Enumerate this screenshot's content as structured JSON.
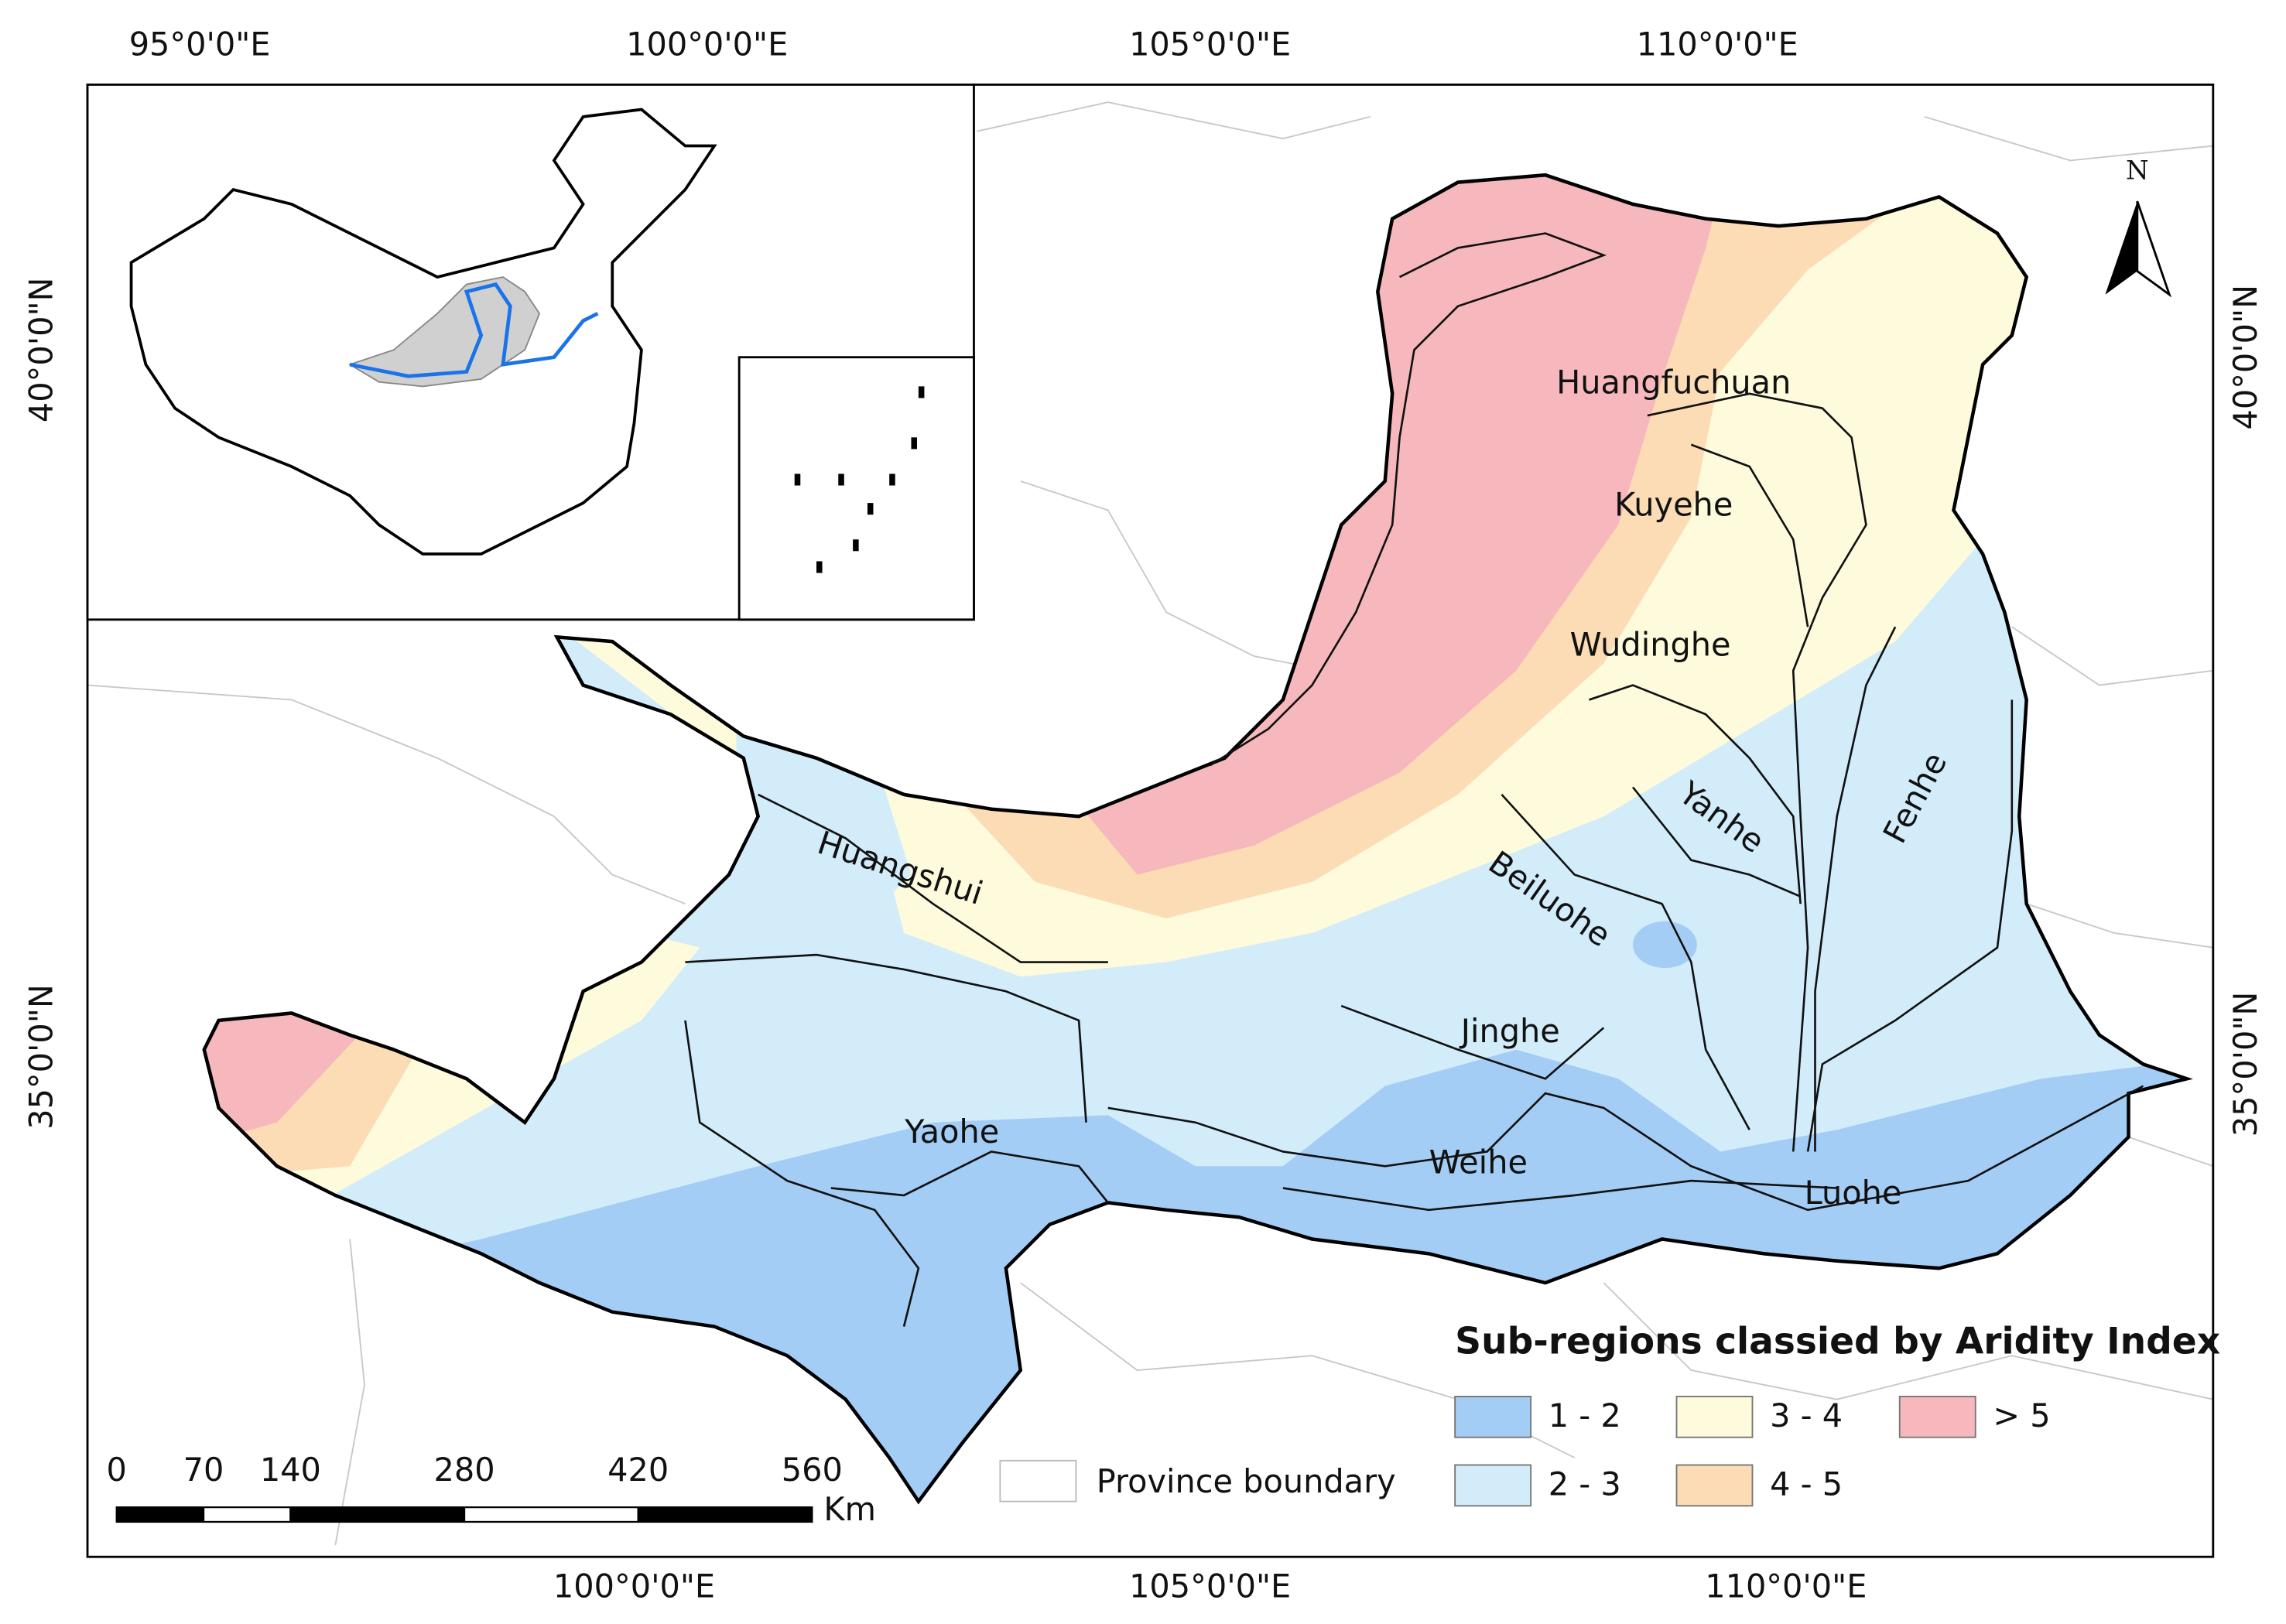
{
  "map": {
    "top_longitude_labels": [
      "95°0'0\"E",
      "100°0'0\"E",
      "105°0'0\"E",
      "110°0'0\"E"
    ],
    "bottom_longitude_labels": [
      "100°0'0\"E",
      "105°0'0\"E",
      "110°0'0\"E"
    ],
    "left_latitude_labels": [
      "40°0'0\"N",
      "35°0'0\"N"
    ],
    "right_latitude_labels": [
      "40°0'0\"N",
      "35°0'0\"N"
    ],
    "north_label": "N",
    "rivers": [
      "Huangfuchuan",
      "Kuyehe",
      "Wudinghe",
      "Yanhe",
      "Fenhe",
      "Beiluohe",
      "Huangshui",
      "Jinghe",
      "Yaohe",
      "Weihe",
      "Luohe"
    ],
    "legend": {
      "title": "Sub-regions classied by Aridity Index",
      "items": [
        {
          "label": "1 - 2",
          "color": "#a3cdf5"
        },
        {
          "label": "2 - 3",
          "color": "#d3ecfa"
        },
        {
          "label": "3 - 4",
          "color": "#fdfbdc"
        },
        {
          "label": "4 - 5",
          "color": "#fbdcb4"
        },
        {
          "label": "> 5",
          "color": "#f6b8bc"
        }
      ],
      "boundary_label": "Province boundary"
    },
    "scale_bar": {
      "ticks": [
        0,
        70,
        140,
        280,
        420,
        560
      ],
      "unit": "Km"
    }
  }
}
